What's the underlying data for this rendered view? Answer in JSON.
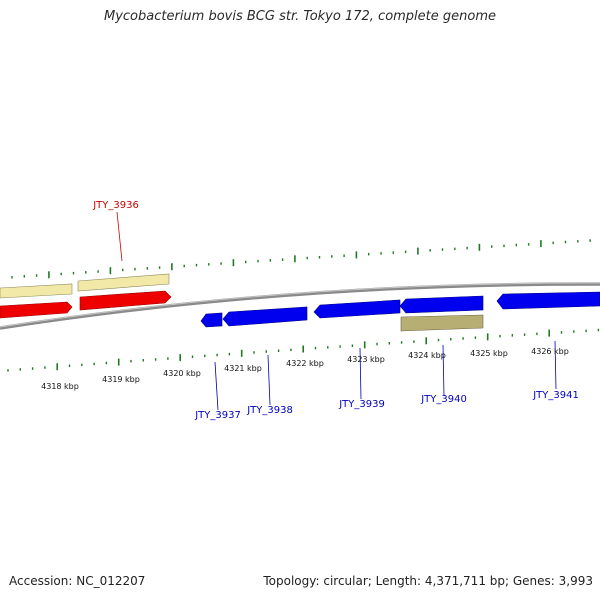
{
  "title": "Mycobacterium bovis BCG str. Tokyo 172, complete genome",
  "footer": {
    "accession": "Accession: NC_012207",
    "summary": "Topology: circular; Length: 4,371,711 bp; Genes: 3,993"
  },
  "colors": {
    "forward_gene": "#ee0000",
    "reverse_gene": "#0000ee",
    "forward_gene_label": "#cc0000",
    "reverse_gene_label": "#0000bb",
    "forward_feature": "#f2e9a8",
    "reverse_feature": "#b6ae72",
    "tick": "#1f7a1f",
    "backbone": "#8a8a8a"
  },
  "scale_labels": [
    "4318 kbp",
    "4319 kbp",
    "4320 kbp",
    "4321 kbp",
    "4322 kbp",
    "4323 kbp",
    "4324 kbp",
    "4325 kbp",
    "4326 kbp"
  ],
  "gene_labels": {
    "forward": [
      "JTY_3936"
    ],
    "reverse": [
      "JTY_3937",
      "JTY_3938",
      "JTY_3939",
      "JTY_3940",
      "JTY_3941"
    ]
  }
}
